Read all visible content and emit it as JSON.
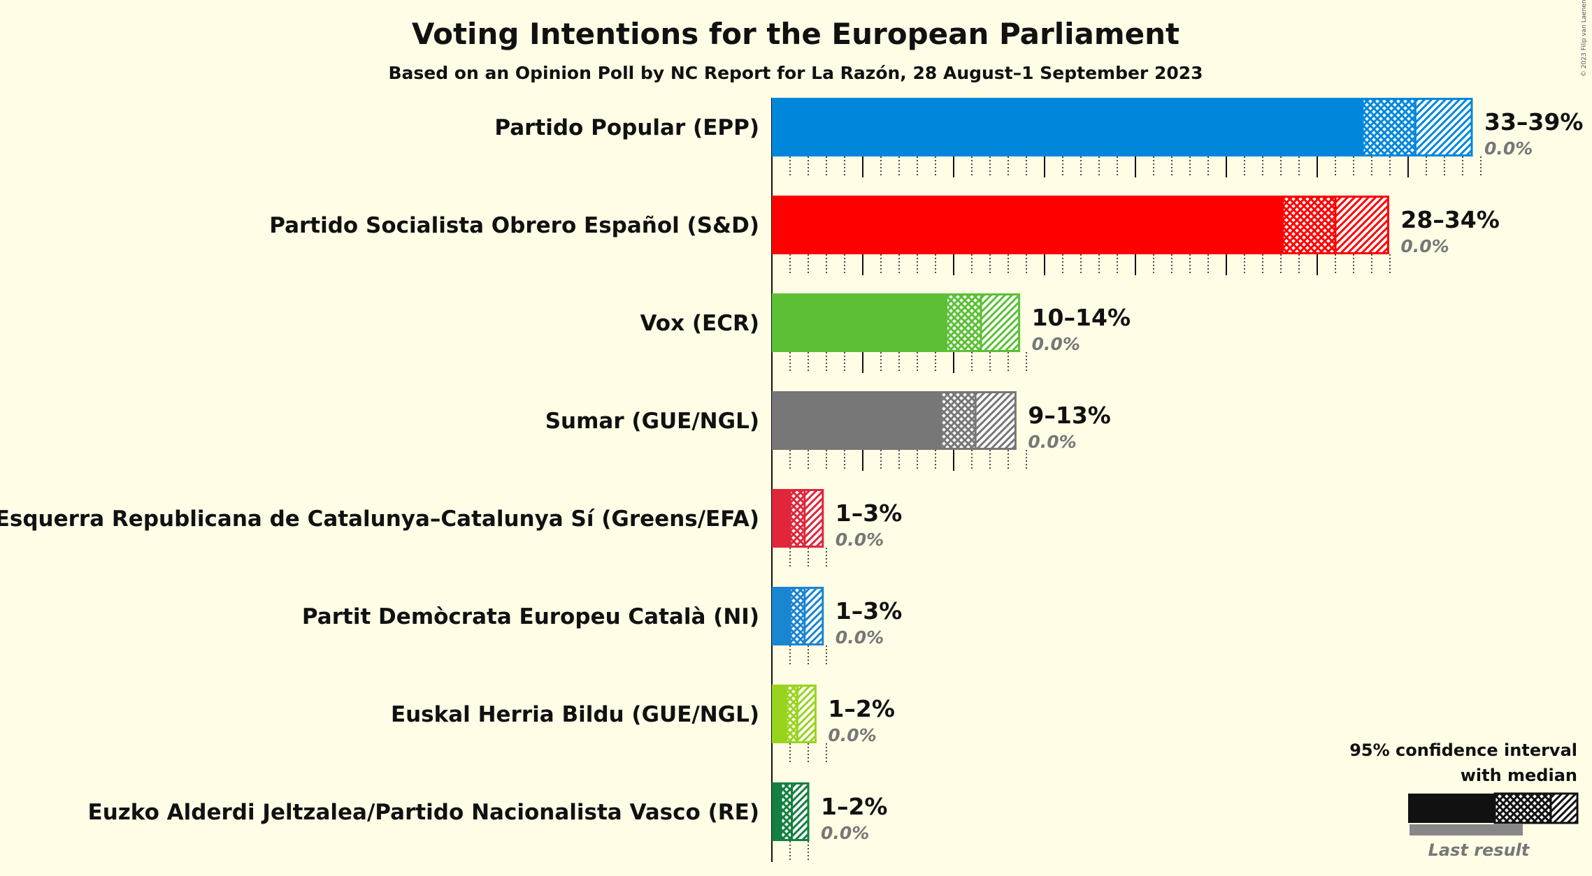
{
  "title": "Voting Intentions for the European Parliament",
  "subtitle": "Based on an Opinion Poll by NC Report for La Razón, 28 August–1 September 2023",
  "copyright": "© 2023 Filip van Laenen",
  "legend": {
    "line1": "95% confidence interval",
    "line2": "with median",
    "last_result": "Last result"
  },
  "chart_data": {
    "type": "bar",
    "orientation": "horizontal",
    "title": "Voting Intentions for the European Parliament",
    "subtitle": "Based on an Opinion Poll by NC Report for La Razón, 28 August–1 September 2023",
    "x_unit": "%",
    "grid": true,
    "legend_position": "bottom-right",
    "parties": [
      {
        "name": "Partido Popular (EPP)",
        "color": "#0087dc",
        "ci_low": 32.5,
        "median": 35.4,
        "ci_high": 38.5,
        "range_label": "33–39%",
        "last_result_label": "0.0%",
        "last_result": 0.0
      },
      {
        "name": "Partido Socialista Obrero Español (S&D)",
        "color": "#ff0000",
        "ci_low": 28.1,
        "median": 31.0,
        "ci_high": 33.9,
        "range_label": "28–34%",
        "last_result_label": "0.0%",
        "last_result": 0.0
      },
      {
        "name": "Vox (ECR)",
        "color": "#5bc035",
        "ci_low": 9.6,
        "median": 11.5,
        "ci_high": 13.6,
        "range_label": "10–14%",
        "last_result_label": "0.0%",
        "last_result": 0.0
      },
      {
        "name": "Sumar (GUE/NGL)",
        "color": "#777777",
        "ci_low": 9.3,
        "median": 11.2,
        "ci_high": 13.4,
        "range_label": "9–13%",
        "last_result_label": "0.0%",
        "last_result": 0.0
      },
      {
        "name": "Esquerra Republicana de Catalunya–Catalunya Sí (Greens/EFA)",
        "color": "#e0263a",
        "ci_low": 1.0,
        "median": 1.8,
        "ci_high": 2.8,
        "range_label": "1–3%",
        "last_result_label": "0.0%",
        "last_result": 0.0
      },
      {
        "name": "Partit Demòcrata Europeu Català (NI)",
        "color": "#1a85d0",
        "ci_low": 1.0,
        "median": 1.8,
        "ci_high": 2.8,
        "range_label": "1–3%",
        "last_result_label": "0.0%",
        "last_result": 0.0
      },
      {
        "name": "Euskal Herria Bildu (GUE/NGL)",
        "color": "#98d41d",
        "ci_low": 0.8,
        "median": 1.4,
        "ci_high": 2.4,
        "range_label": "1–2%",
        "last_result_label": "0.0%",
        "last_result": 0.0
      },
      {
        "name": "Euzko Alderdi Jeltzalea/Partido Nacionalista Vasco (RE)",
        "color": "#13803f",
        "ci_low": 0.5,
        "median": 1.1,
        "ci_high": 2.0,
        "range_label": "1–2%",
        "last_result_label": "0.0%",
        "last_result": 0.0
      }
    ]
  }
}
